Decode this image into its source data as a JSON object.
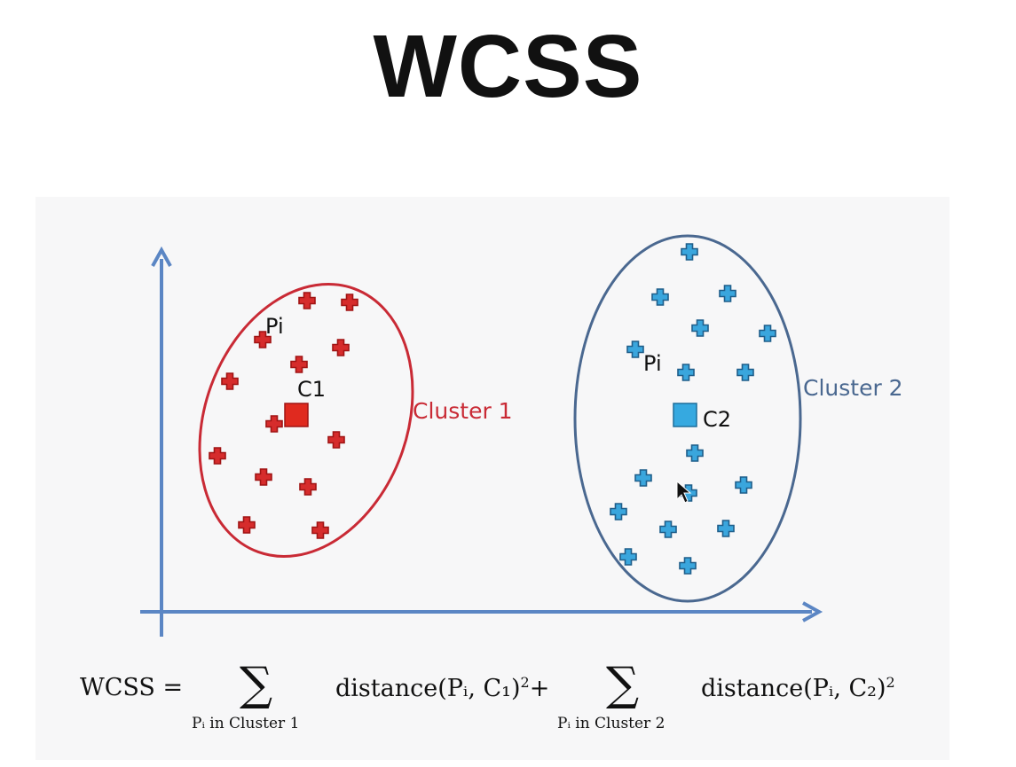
{
  "title": "WCSS",
  "clusters": [
    {
      "name": "Cluster 1",
      "centroid_label": "C1",
      "point_label": "Pi",
      "color": "#d62c2c",
      "outline": "#c92a35"
    },
    {
      "name": "Cluster 2",
      "centroid_label": "C2",
      "point_label": "Pi",
      "color": "#3aa6dd",
      "outline": "#4a6890"
    }
  ],
  "axis_color": "#5b86c4",
  "formula": {
    "lhs": "WCSS =",
    "sum1_sub": "Pᵢ in Cluster 1",
    "term1": "distance(Pᵢ, C₁)",
    "term1_exp": "2",
    "plus": "+",
    "sum2_sub": "Pᵢ in Cluster 2",
    "term2": "distance(Pᵢ, C₂)",
    "term2_exp": "2",
    "sigma": "∑"
  }
}
